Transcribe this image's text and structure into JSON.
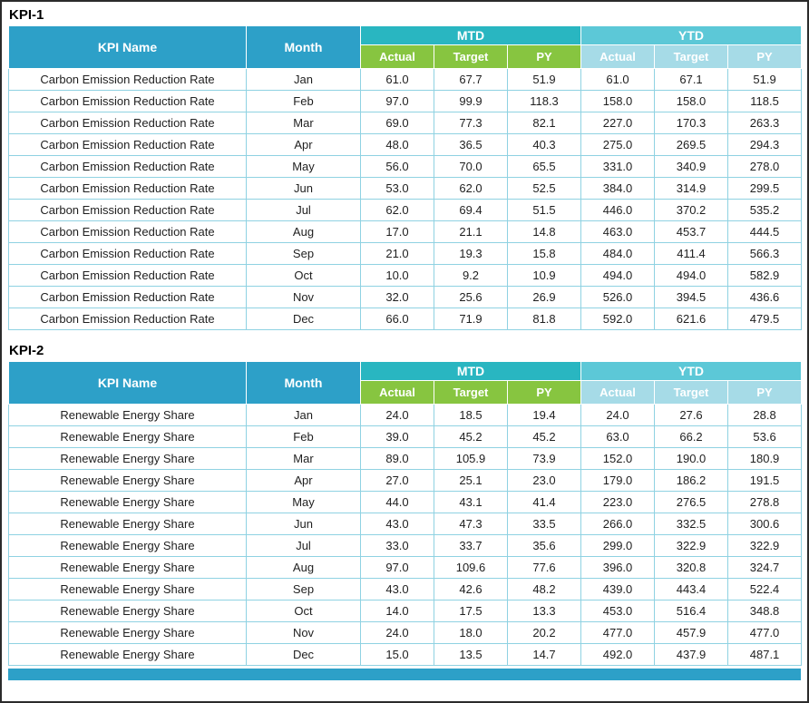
{
  "colors": {
    "header-blue": "#2DA0C8",
    "mtd-teal": "#29B6C1",
    "ytd-cyan": "#5CC8D7",
    "sub-green": "#87C540",
    "sub-pale": "#A6DBE7",
    "grid": "#8FD2E2"
  },
  "tables": [
    {
      "title": "KPI-1",
      "kpi_name_header": "KPI Name",
      "month_header": "Month",
      "mtd_label": "MTD",
      "ytd_label": "YTD",
      "sub_headers": [
        "Actual",
        "Target",
        "PY"
      ],
      "rows": [
        {
          "kpi": "Carbon Emission Reduction Rate",
          "month": "Jan",
          "mtd": [
            "61.0",
            "67.7",
            "51.9"
          ],
          "ytd": [
            "61.0",
            "67.1",
            "51.9"
          ]
        },
        {
          "kpi": "Carbon Emission Reduction Rate",
          "month": "Feb",
          "mtd": [
            "97.0",
            "99.9",
            "118.3"
          ],
          "ytd": [
            "158.0",
            "158.0",
            "118.5"
          ]
        },
        {
          "kpi": "Carbon Emission Reduction Rate",
          "month": "Mar",
          "mtd": [
            "69.0",
            "77.3",
            "82.1"
          ],
          "ytd": [
            "227.0",
            "170.3",
            "263.3"
          ]
        },
        {
          "kpi": "Carbon Emission Reduction Rate",
          "month": "Apr",
          "mtd": [
            "48.0",
            "36.5",
            "40.3"
          ],
          "ytd": [
            "275.0",
            "269.5",
            "294.3"
          ]
        },
        {
          "kpi": "Carbon Emission Reduction Rate",
          "month": "May",
          "mtd": [
            "56.0",
            "70.0",
            "65.5"
          ],
          "ytd": [
            "331.0",
            "340.9",
            "278.0"
          ]
        },
        {
          "kpi": "Carbon Emission Reduction Rate",
          "month": "Jun",
          "mtd": [
            "53.0",
            "62.0",
            "52.5"
          ],
          "ytd": [
            "384.0",
            "314.9",
            "299.5"
          ]
        },
        {
          "kpi": "Carbon Emission Reduction Rate",
          "month": "Jul",
          "mtd": [
            "62.0",
            "69.4",
            "51.5"
          ],
          "ytd": [
            "446.0",
            "370.2",
            "535.2"
          ]
        },
        {
          "kpi": "Carbon Emission Reduction Rate",
          "month": "Aug",
          "mtd": [
            "17.0",
            "21.1",
            "14.8"
          ],
          "ytd": [
            "463.0",
            "453.7",
            "444.5"
          ]
        },
        {
          "kpi": "Carbon Emission Reduction Rate",
          "month": "Sep",
          "mtd": [
            "21.0",
            "19.3",
            "15.8"
          ],
          "ytd": [
            "484.0",
            "411.4",
            "566.3"
          ]
        },
        {
          "kpi": "Carbon Emission Reduction Rate",
          "month": "Oct",
          "mtd": [
            "10.0",
            "9.2",
            "10.9"
          ],
          "ytd": [
            "494.0",
            "494.0",
            "582.9"
          ]
        },
        {
          "kpi": "Carbon Emission Reduction Rate",
          "month": "Nov",
          "mtd": [
            "32.0",
            "25.6",
            "26.9"
          ],
          "ytd": [
            "526.0",
            "394.5",
            "436.6"
          ]
        },
        {
          "kpi": "Carbon Emission Reduction Rate",
          "month": "Dec",
          "mtd": [
            "66.0",
            "71.9",
            "81.8"
          ],
          "ytd": [
            "592.0",
            "621.6",
            "479.5"
          ]
        }
      ]
    },
    {
      "title": "KPI-2",
      "kpi_name_header": "KPI Name",
      "month_header": "Month",
      "mtd_label": "MTD",
      "ytd_label": "YTD",
      "sub_headers": [
        "Actual",
        "Target",
        "PY"
      ],
      "rows": [
        {
          "kpi": "Renewable Energy Share",
          "month": "Jan",
          "mtd": [
            "24.0",
            "18.5",
            "19.4"
          ],
          "ytd": [
            "24.0",
            "27.6",
            "28.8"
          ]
        },
        {
          "kpi": "Renewable Energy Share",
          "month": "Feb",
          "mtd": [
            "39.0",
            "45.2",
            "45.2"
          ],
          "ytd": [
            "63.0",
            "66.2",
            "53.6"
          ]
        },
        {
          "kpi": "Renewable Energy Share",
          "month": "Mar",
          "mtd": [
            "89.0",
            "105.9",
            "73.9"
          ],
          "ytd": [
            "152.0",
            "190.0",
            "180.9"
          ]
        },
        {
          "kpi": "Renewable Energy Share",
          "month": "Apr",
          "mtd": [
            "27.0",
            "25.1",
            "23.0"
          ],
          "ytd": [
            "179.0",
            "186.2",
            "191.5"
          ]
        },
        {
          "kpi": "Renewable Energy Share",
          "month": "May",
          "mtd": [
            "44.0",
            "43.1",
            "41.4"
          ],
          "ytd": [
            "223.0",
            "276.5",
            "278.8"
          ]
        },
        {
          "kpi": "Renewable Energy Share",
          "month": "Jun",
          "mtd": [
            "43.0",
            "47.3",
            "33.5"
          ],
          "ytd": [
            "266.0",
            "332.5",
            "300.6"
          ]
        },
        {
          "kpi": "Renewable Energy Share",
          "month": "Jul",
          "mtd": [
            "33.0",
            "33.7",
            "35.6"
          ],
          "ytd": [
            "299.0",
            "322.9",
            "322.9"
          ]
        },
        {
          "kpi": "Renewable Energy Share",
          "month": "Aug",
          "mtd": [
            "97.0",
            "109.6",
            "77.6"
          ],
          "ytd": [
            "396.0",
            "320.8",
            "324.7"
          ]
        },
        {
          "kpi": "Renewable Energy Share",
          "month": "Sep",
          "mtd": [
            "43.0",
            "42.6",
            "48.2"
          ],
          "ytd": [
            "439.0",
            "443.4",
            "522.4"
          ]
        },
        {
          "kpi": "Renewable Energy Share",
          "month": "Oct",
          "mtd": [
            "14.0",
            "17.5",
            "13.3"
          ],
          "ytd": [
            "453.0",
            "516.4",
            "348.8"
          ]
        },
        {
          "kpi": "Renewable Energy Share",
          "month": "Nov",
          "mtd": [
            "24.0",
            "18.0",
            "20.2"
          ],
          "ytd": [
            "477.0",
            "457.9",
            "477.0"
          ]
        },
        {
          "kpi": "Renewable Energy Share",
          "month": "Dec",
          "mtd": [
            "15.0",
            "13.5",
            "14.7"
          ],
          "ytd": [
            "492.0",
            "437.9",
            "487.1"
          ]
        }
      ]
    }
  ],
  "partial_next_table_header": ""
}
